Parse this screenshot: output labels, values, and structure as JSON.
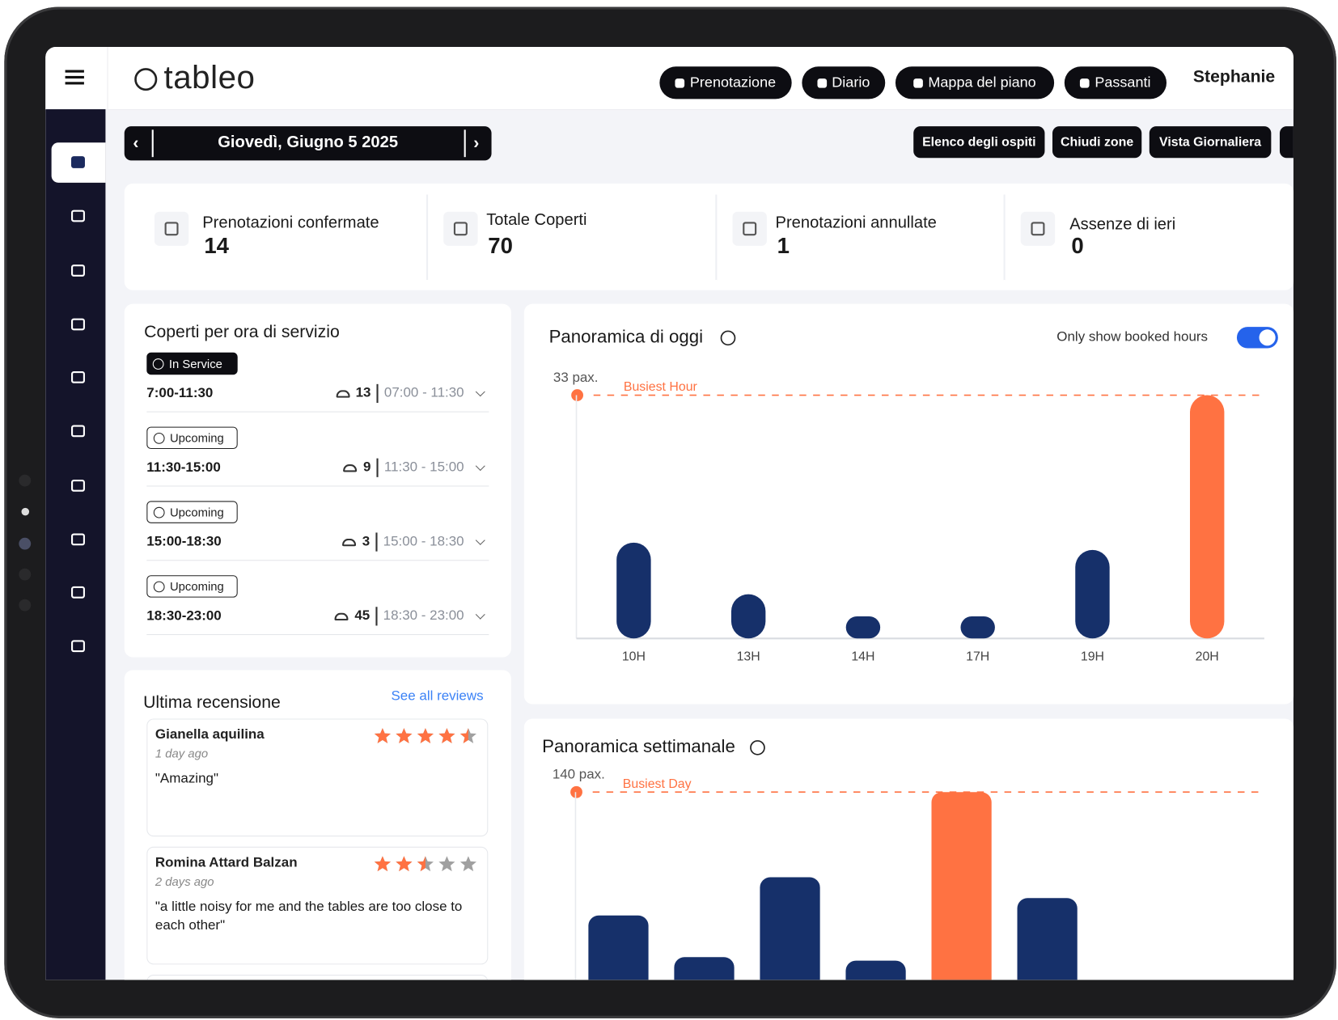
{
  "header": {
    "logo": "tableo",
    "buttons": [
      "Prenotazione",
      "Diario",
      "Mappa del piano",
      "Passanti"
    ],
    "user": "Stephanie"
  },
  "date_bar": {
    "date": "Giovedì, Giugno 5 2025"
  },
  "toolbar": [
    "Elenco degli ospiti",
    "Chiudi zone",
    "Vista Giornaliera"
  ],
  "stats": [
    {
      "label": "Prenotazioni confermate",
      "value": 14
    },
    {
      "label": "Totale Coperti",
      "value": 70
    },
    {
      "label": "Prenotazioni annullate",
      "value": 1
    },
    {
      "label": "Assenze di ieri",
      "value": 0
    }
  ],
  "services": {
    "title": "Coperti per ora di servizio",
    "items": [
      {
        "status": "In Service",
        "time": "7:00-11:30",
        "covers": 13,
        "range": "07:00 - 11:30"
      },
      {
        "status": "Upcoming",
        "time": "11:30-15:00",
        "covers": 9,
        "range": "11:30 - 15:00"
      },
      {
        "status": "Upcoming",
        "time": "15:00-18:30",
        "covers": 3,
        "range": "15:00 - 18:30"
      },
      {
        "status": "Upcoming",
        "time": "18:30-23:00",
        "covers": 45,
        "range": "18:30 - 23:00"
      }
    ]
  },
  "reviews": {
    "title": "Ultima recensione",
    "link": "See all reviews",
    "items": [
      {
        "name": "Gianella aquilina",
        "rating": 4.5,
        "when": "1 day ago",
        "text": "\"Amazing\""
      },
      {
        "name": "Romina Attard Balzan",
        "rating": 2.5,
        "when": "2 days ago",
        "text": "\"a little noisy for me and the tables are too close to each other\""
      }
    ]
  },
  "toggle": {
    "label": "Only show booked hours",
    "on": true
  },
  "chart_data": [
    {
      "type": "bar",
      "title": "Panoramica di oggi",
      "categories": [
        "10H",
        "13H",
        "14H",
        "17H",
        "19H",
        "20H"
      ],
      "values": [
        13,
        6,
        3,
        3,
        12,
        33
      ],
      "colors": [
        "#16306a",
        "#16306a",
        "#16306a",
        "#16306a",
        "#16306a",
        "#ff7242"
      ],
      "ylim": [
        0,
        33
      ],
      "yticks": [
        {
          "value": 33,
          "label": "33 pax."
        }
      ],
      "annotation": "Busiest Hour",
      "tick_color": "#ff7242"
    },
    {
      "type": "bar",
      "title": "Panoramica settimanale",
      "values": [
        69,
        45,
        91,
        43,
        140,
        79
      ],
      "colors": [
        "#16306a",
        "#16306a",
        "#16306a",
        "#16306a",
        "#ff7242",
        "#16306a"
      ],
      "ylim": [
        0,
        140
      ],
      "yticks": [
        {
          "value": 140,
          "label": "140 pax."
        }
      ],
      "annotation": "Busiest Day",
      "tick_color": "#ff7242"
    }
  ]
}
